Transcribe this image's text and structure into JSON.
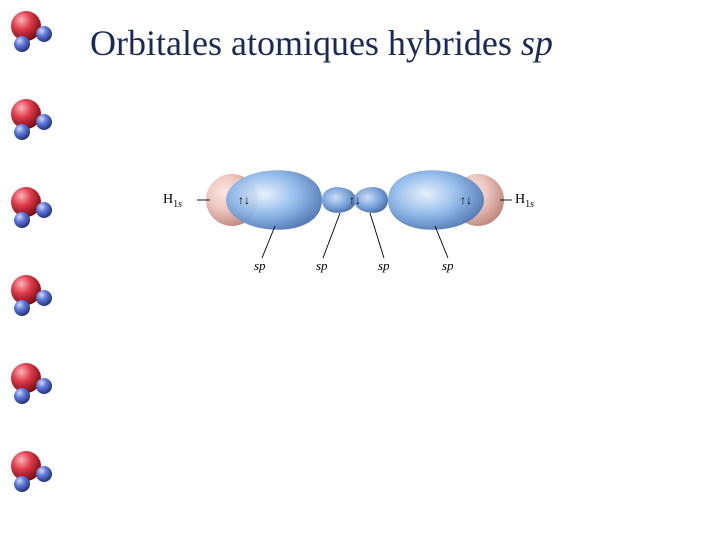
{
  "title": {
    "main": "Orbitales atomiques hybrides ",
    "italic": "sp",
    "color": "#1a2a56",
    "fontsize": 36
  },
  "bullets": {
    "count": 6,
    "top_positions": [
      8,
      96,
      184,
      272,
      360,
      448
    ],
    "big_sphere_color_stops": [
      "#f5a4ad",
      "#dc3242",
      "#8b0f17"
    ],
    "small_sphere_color_stops": [
      "#c8d4f4",
      "#5a72d8",
      "#2a3a8a"
    ]
  },
  "diagram": {
    "axis_label_left": "H",
    "axis_label_sub": "1",
    "axis_label_s": "s",
    "axis_label_right": "H",
    "sp_labels": [
      "sp",
      "sp",
      "sp",
      "sp"
    ],
    "electron_arrows": "↑↓",
    "orbital_h_color_stops": [
      "#f7dcd7",
      "#eec3bb",
      "#c48a7e"
    ],
    "orbital_sp_big_color_stops": [
      "#e0edfa",
      "#8bb8ea",
      "#3f6db4"
    ],
    "orbital_sp_small_color_stops": [
      "#d3e2f6",
      "#7da9df",
      "#365f9e"
    ],
    "shadow_color": "#0d1a33",
    "line_color": "#000000"
  }
}
